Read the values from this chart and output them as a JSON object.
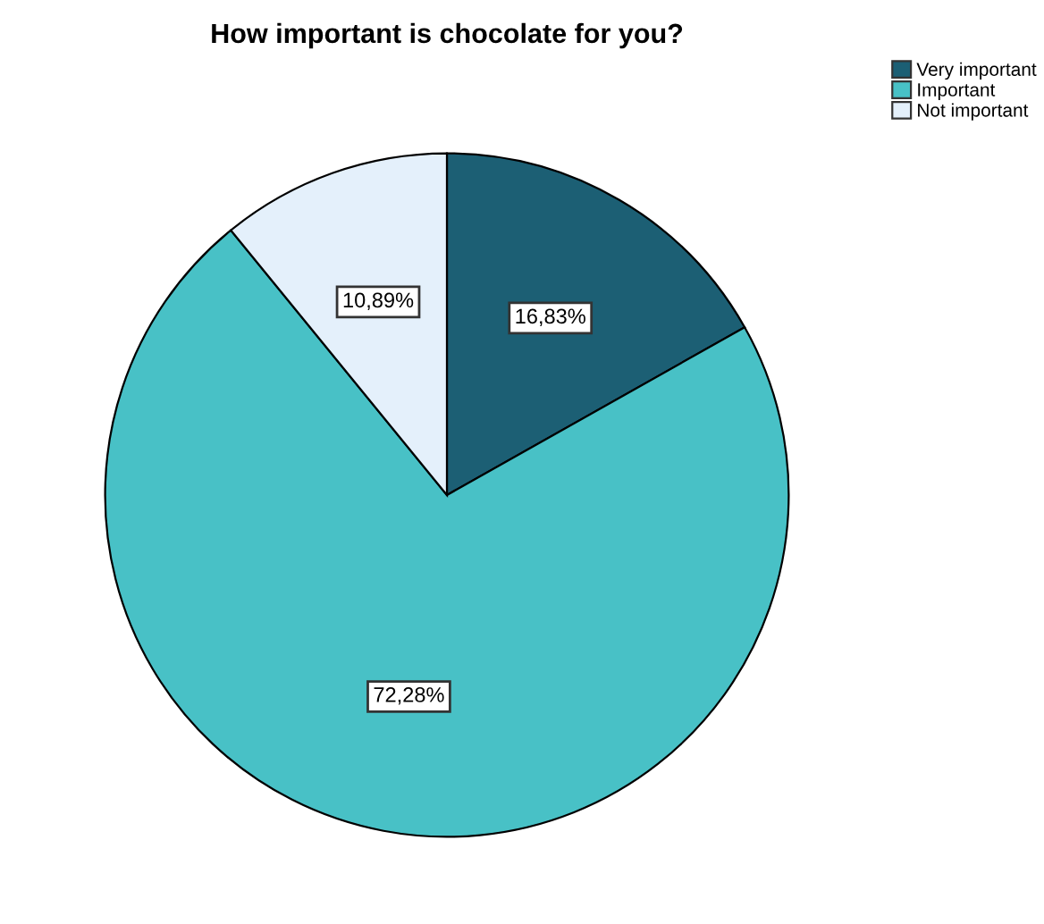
{
  "chart_data": {
    "type": "pie",
    "title": "How important is chocolate for you?",
    "categories": [
      "Very important",
      "Important",
      "Not important"
    ],
    "values": [
      16.83,
      72.28,
      10.89
    ],
    "value_labels": [
      "16,83%",
      "72,28%",
      "10,89%"
    ],
    "colors": [
      "#1c5f74",
      "#48c1c6",
      "#e4f0fb"
    ],
    "legend": "top right"
  }
}
